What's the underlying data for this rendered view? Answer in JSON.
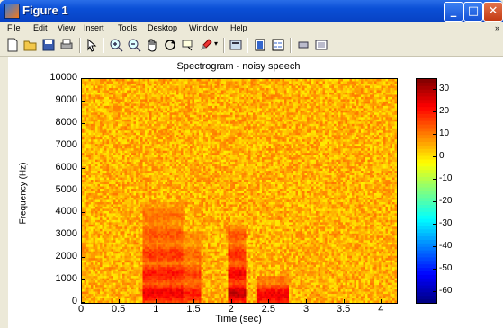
{
  "window": {
    "title": "Figure 1"
  },
  "menu": [
    "File",
    "Edit",
    "View",
    "Insert",
    "Tools",
    "Desktop",
    "Window",
    "Help"
  ],
  "toolbar": [
    "new-figure-icon",
    "open-file-icon",
    "save-icon",
    "print-icon",
    "pointer-icon",
    "zoom-in-icon",
    "zoom-out-icon",
    "pan-hand-icon",
    "rotate-3d-icon",
    "data-cursor-icon",
    "brush-icon",
    "link-plot-icon",
    "colorbar-icon",
    "legend-icon",
    "hide-plot-tools-icon",
    "show-plot-tools-icon"
  ],
  "colors": {
    "title_bar": "#0a4fd6",
    "window_bg": "#ece9d8",
    "plot_bg": "#fdf0a0"
  },
  "chart_data": {
    "type": "heatmap",
    "title": "Spectrogram - noisy speech",
    "xlabel": "Time (sec)",
    "ylabel": "Frequency (Hz)",
    "xlim": [
      0,
      4.2
    ],
    "ylim": [
      0,
      10000
    ],
    "x_ticks": [
      "0",
      "0.5",
      "1",
      "1.5",
      "2",
      "2.5",
      "3",
      "3.5",
      "4"
    ],
    "y_ticks": [
      "0",
      "1000",
      "2000",
      "3000",
      "4000",
      "5000",
      "6000",
      "7000",
      "8000",
      "9000",
      "10000"
    ],
    "colorbar": {
      "colormap": "jet",
      "range": [
        -65,
        35
      ],
      "ticks": [
        "30",
        "20",
        "10",
        "0",
        "-10",
        "-20",
        "-30",
        "-40",
        "-50",
        "-60"
      ]
    },
    "background_level_db": 5,
    "speech_regions": [
      {
        "t_start": 0.8,
        "t_end": 1.35,
        "f_max": 4500,
        "level_db": 25
      },
      {
        "t_start": 1.35,
        "t_end": 1.6,
        "f_max": 3200,
        "level_db": 22
      },
      {
        "t_start": 1.95,
        "t_end": 2.2,
        "f_max": 3500,
        "level_db": 30
      },
      {
        "t_start": 2.35,
        "t_end": 2.75,
        "f_max": 1200,
        "level_db": 30
      }
    ]
  }
}
